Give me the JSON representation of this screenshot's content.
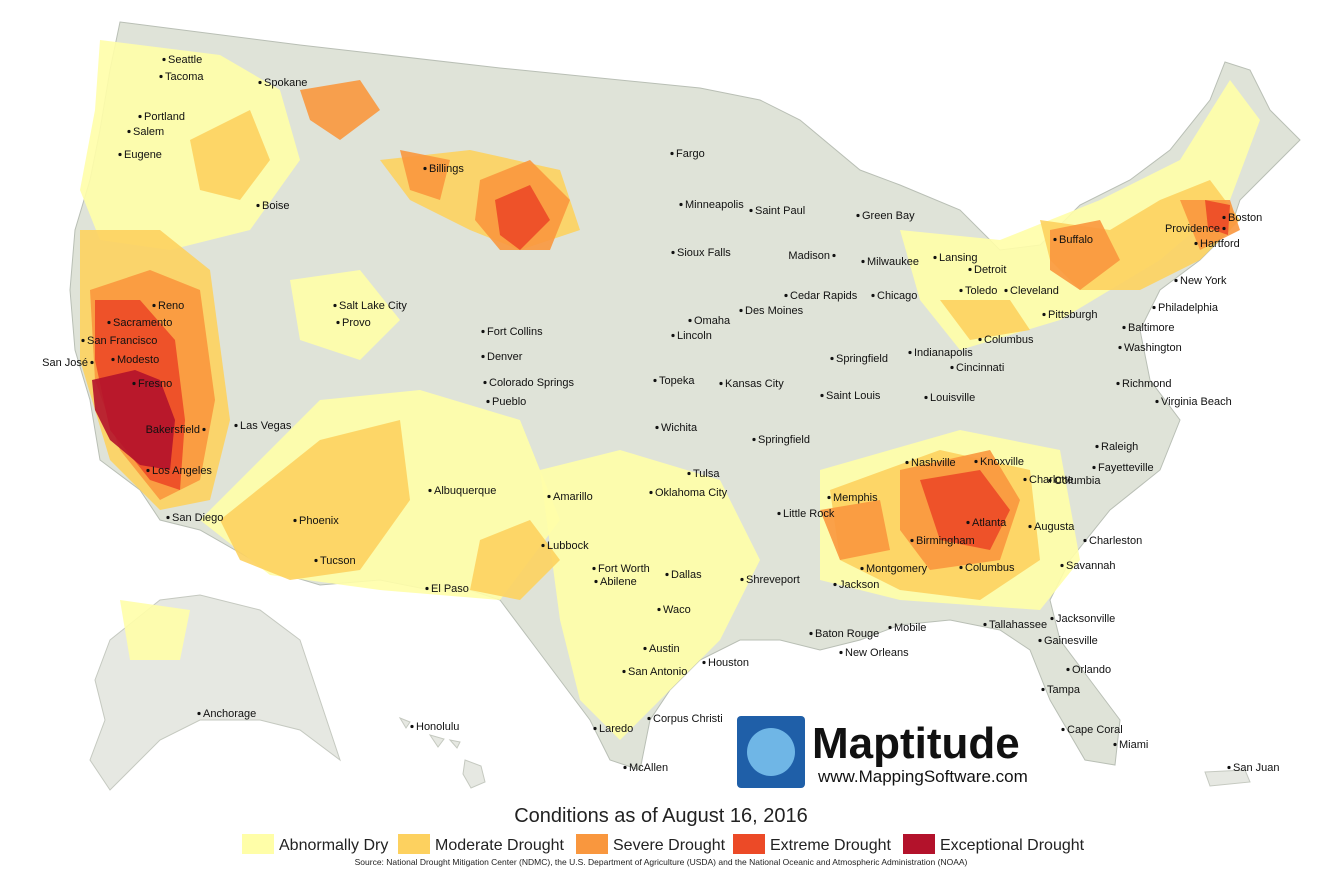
{
  "cities": [
    "Seattle",
    "Tacoma",
    "Spokane",
    "Portland",
    "Salem",
    "Eugene",
    "Boise",
    "Reno",
    "Sacramento",
    "San Francisco",
    "San José",
    "Modesto",
    "Fresno",
    "Bakersfield",
    "Los Angeles",
    "San Diego",
    "Las Vegas",
    "Phoenix",
    "Tucson",
    "Salt Lake City",
    "Provo",
    "Billings",
    "Fort Collins",
    "Denver",
    "Colorado Springs",
    "Pueblo",
    "Albuquerque",
    "El Paso",
    "Amarillo",
    "Lubbock",
    "Fargo",
    "Minneapolis",
    "Saint Paul",
    "Sioux Falls",
    "Omaha",
    "Lincoln",
    "Des Moines",
    "Topeka",
    "Kansas City",
    "Wichita",
    "Tulsa",
    "Oklahoma City",
    "Fort Worth",
    "Dallas",
    "Abilene",
    "Waco",
    "Austin",
    "San Antonio",
    "Houston",
    "Laredo",
    "Corpus Christi",
    "McAllen",
    "Shreveport",
    "Springfield",
    "Little Rock",
    "Memphis",
    "Jackson",
    "Baton Rouge",
    "New Orleans",
    "Mobile",
    "Montgomery",
    "Birmingham",
    "Atlanta",
    "Columbus",
    "Augusta",
    "Savannah",
    "Charleston",
    "Columbia",
    "Charlotte",
    "Knoxville",
    "Nashville",
    "Raleigh",
    "Fayetteville",
    "Jacksonville",
    "Tallahassee",
    "Gainesville",
    "Orlando",
    "Tampa",
    "Cape Coral",
    "Miami",
    "Green Bay",
    "Milwaukee",
    "Madison",
    "Chicago",
    "Cedar Rapids",
    "Springfield",
    "Saint Louis",
    "Indianapolis",
    "Louisville",
    "Cincinnati",
    "Columbus",
    "Lansing",
    "Detroit",
    "Toledo",
    "Cleveland",
    "Pittsburgh",
    "Buffalo",
    "Philadelphia",
    "Baltimore",
    "Washington",
    "Richmond",
    "Virginia Beach",
    "New York",
    "Hartford",
    "Providence",
    "Boston",
    "Anchorage",
    "Honolulu",
    "San Juan"
  ],
  "legend": {
    "title": "Conditions as of August 16, 2016",
    "items": [
      {
        "label": "Abnormally Dry",
        "color": "#fffea8"
      },
      {
        "label": "Moderate Drought",
        "color": "#fdd15f"
      },
      {
        "label": "Severe Drought",
        "color": "#f9973e"
      },
      {
        "label": "Extreme Drought",
        "color": "#ec4a27"
      },
      {
        "label": "Exceptional Drought",
        "color": "#b3122b"
      }
    ]
  },
  "source": "Source: National Drought Mitigation Center (NDMC), the U.S. Department of Agriculture (USDA) and the National Oceanic and Atmospheric Administration (NOAA)",
  "logo": {
    "name": "Maptitude",
    "url": "www.MappingSoftware.com"
  }
}
